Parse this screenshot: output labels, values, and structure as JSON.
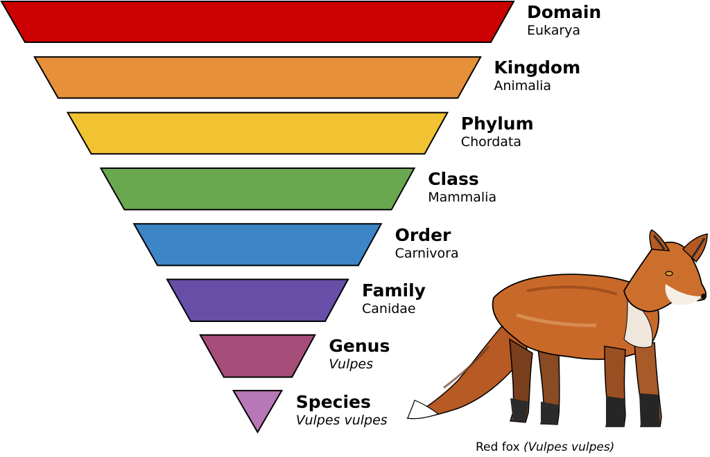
{
  "levels": [
    {
      "rank": "Domain",
      "value": "Eukarya",
      "color": "#cc0000",
      "italic": false
    },
    {
      "rank": "Kingdom",
      "value": "Animalia",
      "color": "#e6903a",
      "italic": false
    },
    {
      "rank": "Phylum",
      "value": "Chordata",
      "color": "#f1c232",
      "italic": false
    },
    {
      "rank": "Class",
      "value": "Mammalia",
      "color": "#6aa84f",
      "italic": false
    },
    {
      "rank": "Order",
      "value": "Carnivora",
      "color": "#3d85c6",
      "italic": false
    },
    {
      "rank": "Family",
      "value": "Canidae",
      "color": "#674ea7",
      "italic": false
    },
    {
      "rank": "Genus",
      "value": "Vulpes",
      "color": "#a64d79",
      "italic": true
    },
    {
      "rank": "Species",
      "value": "Vulpes vulpes",
      "color": "#b877b6",
      "italic": true
    }
  ],
  "illustration": {
    "icon": "red-fox-illustration"
  },
  "caption": {
    "common": "Red fox",
    "scientific": "(Vulpes vulpes)"
  }
}
